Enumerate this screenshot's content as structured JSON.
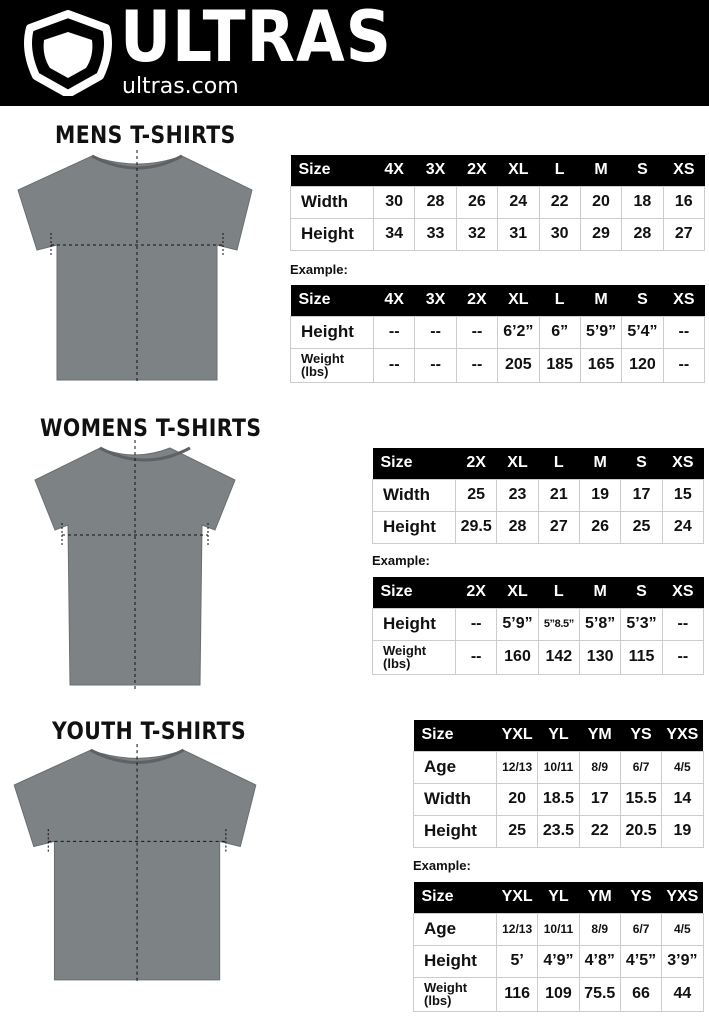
{
  "header": {
    "brand": "ULTRAS",
    "url": "ultras.com"
  },
  "colors": {
    "header_bg": "#000000",
    "shirt": "#7d8285",
    "table_header": "#000000"
  },
  "example_label": "Example:",
  "sections": [
    {
      "title": "MENS T-SHIRTS",
      "measure": {
        "columns": [
          "Size",
          "4X",
          "3X",
          "2X",
          "XL",
          "L",
          "M",
          "S",
          "XS"
        ],
        "rows": [
          {
            "label": "Width",
            "values": [
              "30",
              "28",
              "26",
              "24",
              "22",
              "20",
              "18",
              "16"
            ]
          },
          {
            "label": "Height",
            "values": [
              "34",
              "33",
              "32",
              "31",
              "30",
              "29",
              "28",
              "27"
            ]
          }
        ]
      },
      "example": {
        "columns": [
          "Size",
          "4X",
          "3X",
          "2X",
          "XL",
          "L",
          "M",
          "S",
          "XS"
        ],
        "rows": [
          {
            "label": "Height",
            "values": [
              "--",
              "--",
              "--",
              "6’2”",
              "6”",
              "5’9”",
              "5’4”",
              "--"
            ]
          },
          {
            "label": "Weight (lbs)",
            "values": [
              "--",
              "--",
              "--",
              "205",
              "185",
              "165",
              "120",
              "--"
            ]
          }
        ]
      }
    },
    {
      "title": "WOMENS T-SHIRTS",
      "measure": {
        "columns": [
          "Size",
          "2X",
          "XL",
          "L",
          "M",
          "S",
          "XS"
        ],
        "rows": [
          {
            "label": "Width",
            "values": [
              "25",
              "23",
              "21",
              "19",
              "17",
              "15"
            ]
          },
          {
            "label": "Height",
            "values": [
              "29.5",
              "28",
              "27",
              "26",
              "25",
              "24"
            ]
          }
        ]
      },
      "example": {
        "columns": [
          "Size",
          "2X",
          "XL",
          "L",
          "M",
          "S",
          "XS"
        ],
        "rows": [
          {
            "label": "Height",
            "values": [
              "--",
              "5’9”",
              "5”8.5”",
              "5’8”",
              "5’3”",
              "--"
            ]
          },
          {
            "label": "Weight (lbs)",
            "values": [
              "--",
              "160",
              "142",
              "130",
              "115",
              "--"
            ]
          }
        ]
      }
    },
    {
      "title": "YOUTH T-SHIRTS",
      "measure": {
        "columns": [
          "Size",
          "YXL",
          "YL",
          "YM",
          "YS",
          "YXS"
        ],
        "rows": [
          {
            "label": "Age",
            "values": [
              "12/13",
              "10/11",
              "8/9",
              "6/7",
              "4/5"
            ]
          },
          {
            "label": "Width",
            "values": [
              "20",
              "18.5",
              "17",
              "15.5",
              "14"
            ]
          },
          {
            "label": "Height",
            "values": [
              "25",
              "23.5",
              "22",
              "20.5",
              "19"
            ]
          }
        ]
      },
      "example": {
        "columns": [
          "Size",
          "YXL",
          "YL",
          "YM",
          "YS",
          "YXS"
        ],
        "rows": [
          {
            "label": "Age",
            "values": [
              "12/13",
              "10/11",
              "8/9",
              "6/7",
              "4/5"
            ]
          },
          {
            "label": "Height",
            "values": [
              "5’",
              "4’9”",
              "4’8”",
              "4’5”",
              "3’9”"
            ]
          },
          {
            "label": "Weight (lbs)",
            "values": [
              "116",
              "109",
              "75.5",
              "66",
              "44"
            ]
          }
        ]
      }
    }
  ]
}
